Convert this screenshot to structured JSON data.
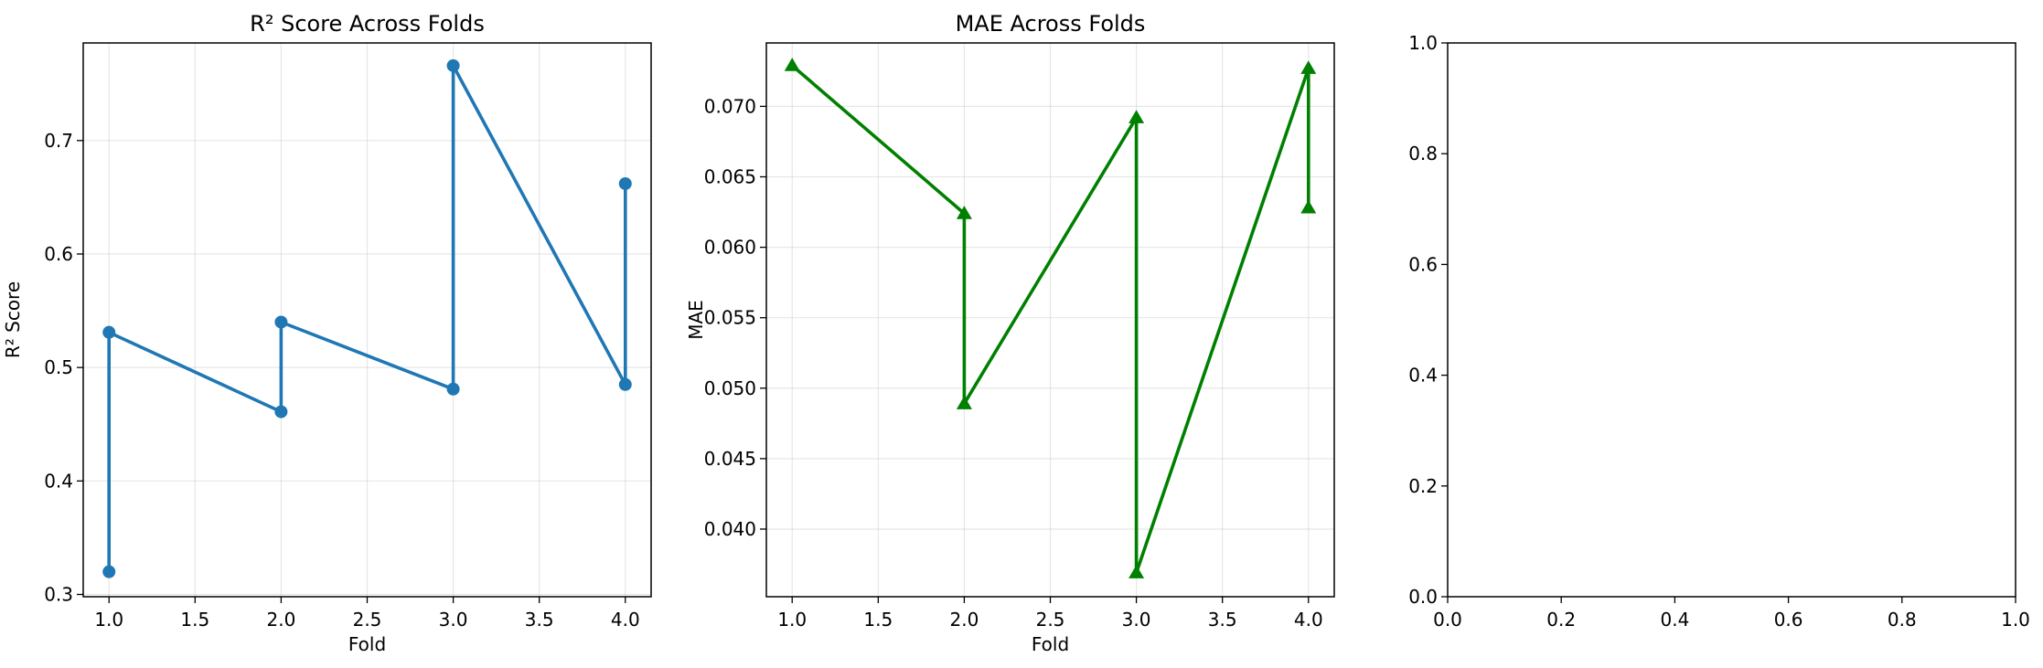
{
  "chart_data": [
    {
      "type": "line",
      "title": "R² Score Across Folds",
      "xlabel": "Fold",
      "ylabel": "R² Score",
      "xlim": [
        0.85,
        4.15
      ],
      "ylim": [
        0.298,
        0.786
      ],
      "xticks": [
        "1.0",
        "1.5",
        "2.0",
        "2.5",
        "3.0",
        "3.5",
        "4.0"
      ],
      "yticks": [
        "0.3",
        "0.4",
        "0.5",
        "0.6",
        "0.7"
      ],
      "grid": true,
      "series": [
        {
          "color": "#1f77b4",
          "marker": "circle",
          "x": [
            1,
            1,
            2,
            2,
            3,
            3,
            4,
            4
          ],
          "y": [
            0.32,
            0.531,
            0.461,
            0.54,
            0.481,
            0.766,
            0.485,
            0.662
          ]
        }
      ]
    },
    {
      "type": "line",
      "title": "MAE Across Folds",
      "xlabel": "Fold",
      "ylabel": "MAE",
      "xlim": [
        0.85,
        4.15
      ],
      "ylim": [
        0.0352,
        0.0745
      ],
      "xticks": [
        "1.0",
        "1.5",
        "2.0",
        "2.5",
        "3.0",
        "3.5",
        "4.0"
      ],
      "yticks": [
        "0.040",
        "0.045",
        "0.050",
        "0.055",
        "0.060",
        "0.065",
        "0.070"
      ],
      "grid": true,
      "series": [
        {
          "color": "#008000",
          "marker": "triangle",
          "x": [
            1,
            2,
            2,
            3,
            3,
            4,
            4
          ],
          "y": [
            0.0729,
            0.0624,
            0.0489,
            0.0692,
            0.0369,
            0.0727,
            0.0628
          ]
        }
      ]
    },
    {
      "type": "line",
      "title": "",
      "xlabel": "",
      "ylabel": "",
      "xlim": [
        0,
        1
      ],
      "ylim": [
        0,
        1
      ],
      "xticks": [
        "0.0",
        "0.2",
        "0.4",
        "0.6",
        "0.8",
        "1.0"
      ],
      "yticks": [
        "0.0",
        "0.2",
        "0.4",
        "0.6",
        "0.8",
        "1.0"
      ],
      "grid": false,
      "series": []
    }
  ]
}
